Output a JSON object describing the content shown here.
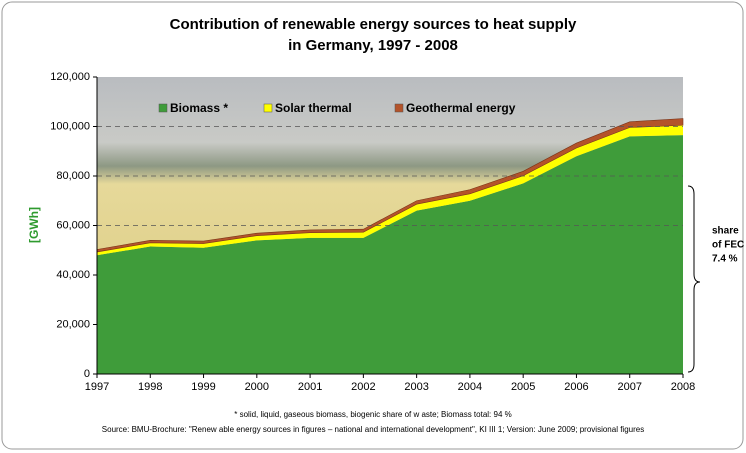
{
  "chart_data": {
    "type": "stacked-area",
    "title": [
      "Contribution of renewable energy sources to heat supply",
      "in Germany, 1997 - 2008"
    ],
    "y_label": "[GWh]",
    "categories": [
      "1997",
      "1998",
      "1999",
      "2000",
      "2001",
      "2002",
      "2003",
      "2004",
      "2005",
      "2006",
      "2007",
      "2008"
    ],
    "series": [
      {
        "name": "Biomass *",
        "color": "#3f9c3a",
        "values": [
          48000,
          51500,
          51000,
          54000,
          55000,
          55000,
          66000,
          70000,
          77000,
          88000,
          96000,
          96500
        ]
      },
      {
        "name": "Solar thermal",
        "color": "#ffff00",
        "values": [
          1300,
          1500,
          1700,
          1900,
          2100,
          2300,
          2600,
          2800,
          3100,
          3300,
          3600,
          4000
        ]
      },
      {
        "name": "Geothermal energy",
        "color": "#b4532a",
        "values": [
          1000,
          1000,
          1000,
          1000,
          1100,
          1200,
          1400,
          1700,
          1800,
          2000,
          2300,
          2700
        ]
      }
    ],
    "ylim": [
      0,
      120000
    ],
    "yticks": [
      0,
      {
        "value": 20000,
        "label": "20,000"
      },
      {
        "value": 40000,
        "label": "40,000"
      },
      {
        "value": 60000,
        "label": "60,000"
      },
      {
        "value": 80000,
        "label": "80,000"
      },
      {
        "value": 100000,
        "label": "100,000"
      },
      {
        "value": 120000,
        "label": "120,000"
      }
    ],
    "grid_ticks": [
      {
        "value": 60000,
        "label": "60,000"
      },
      {
        "value": 80000,
        "label": "80,000"
      },
      {
        "value": 100000,
        "label": "100,000"
      }
    ],
    "annotation": [
      "share",
      "of FEC",
      "7.4 %"
    ],
    "footnote": "* solid, liquid, gaseous biomass, biogenic share of w aste; Biomass total: 94 %",
    "source": "Source: BMU-Brochure: \"Renew able energy sources in figures – national and international development\", KI III 1; Version: June 2009; provisional figures"
  }
}
